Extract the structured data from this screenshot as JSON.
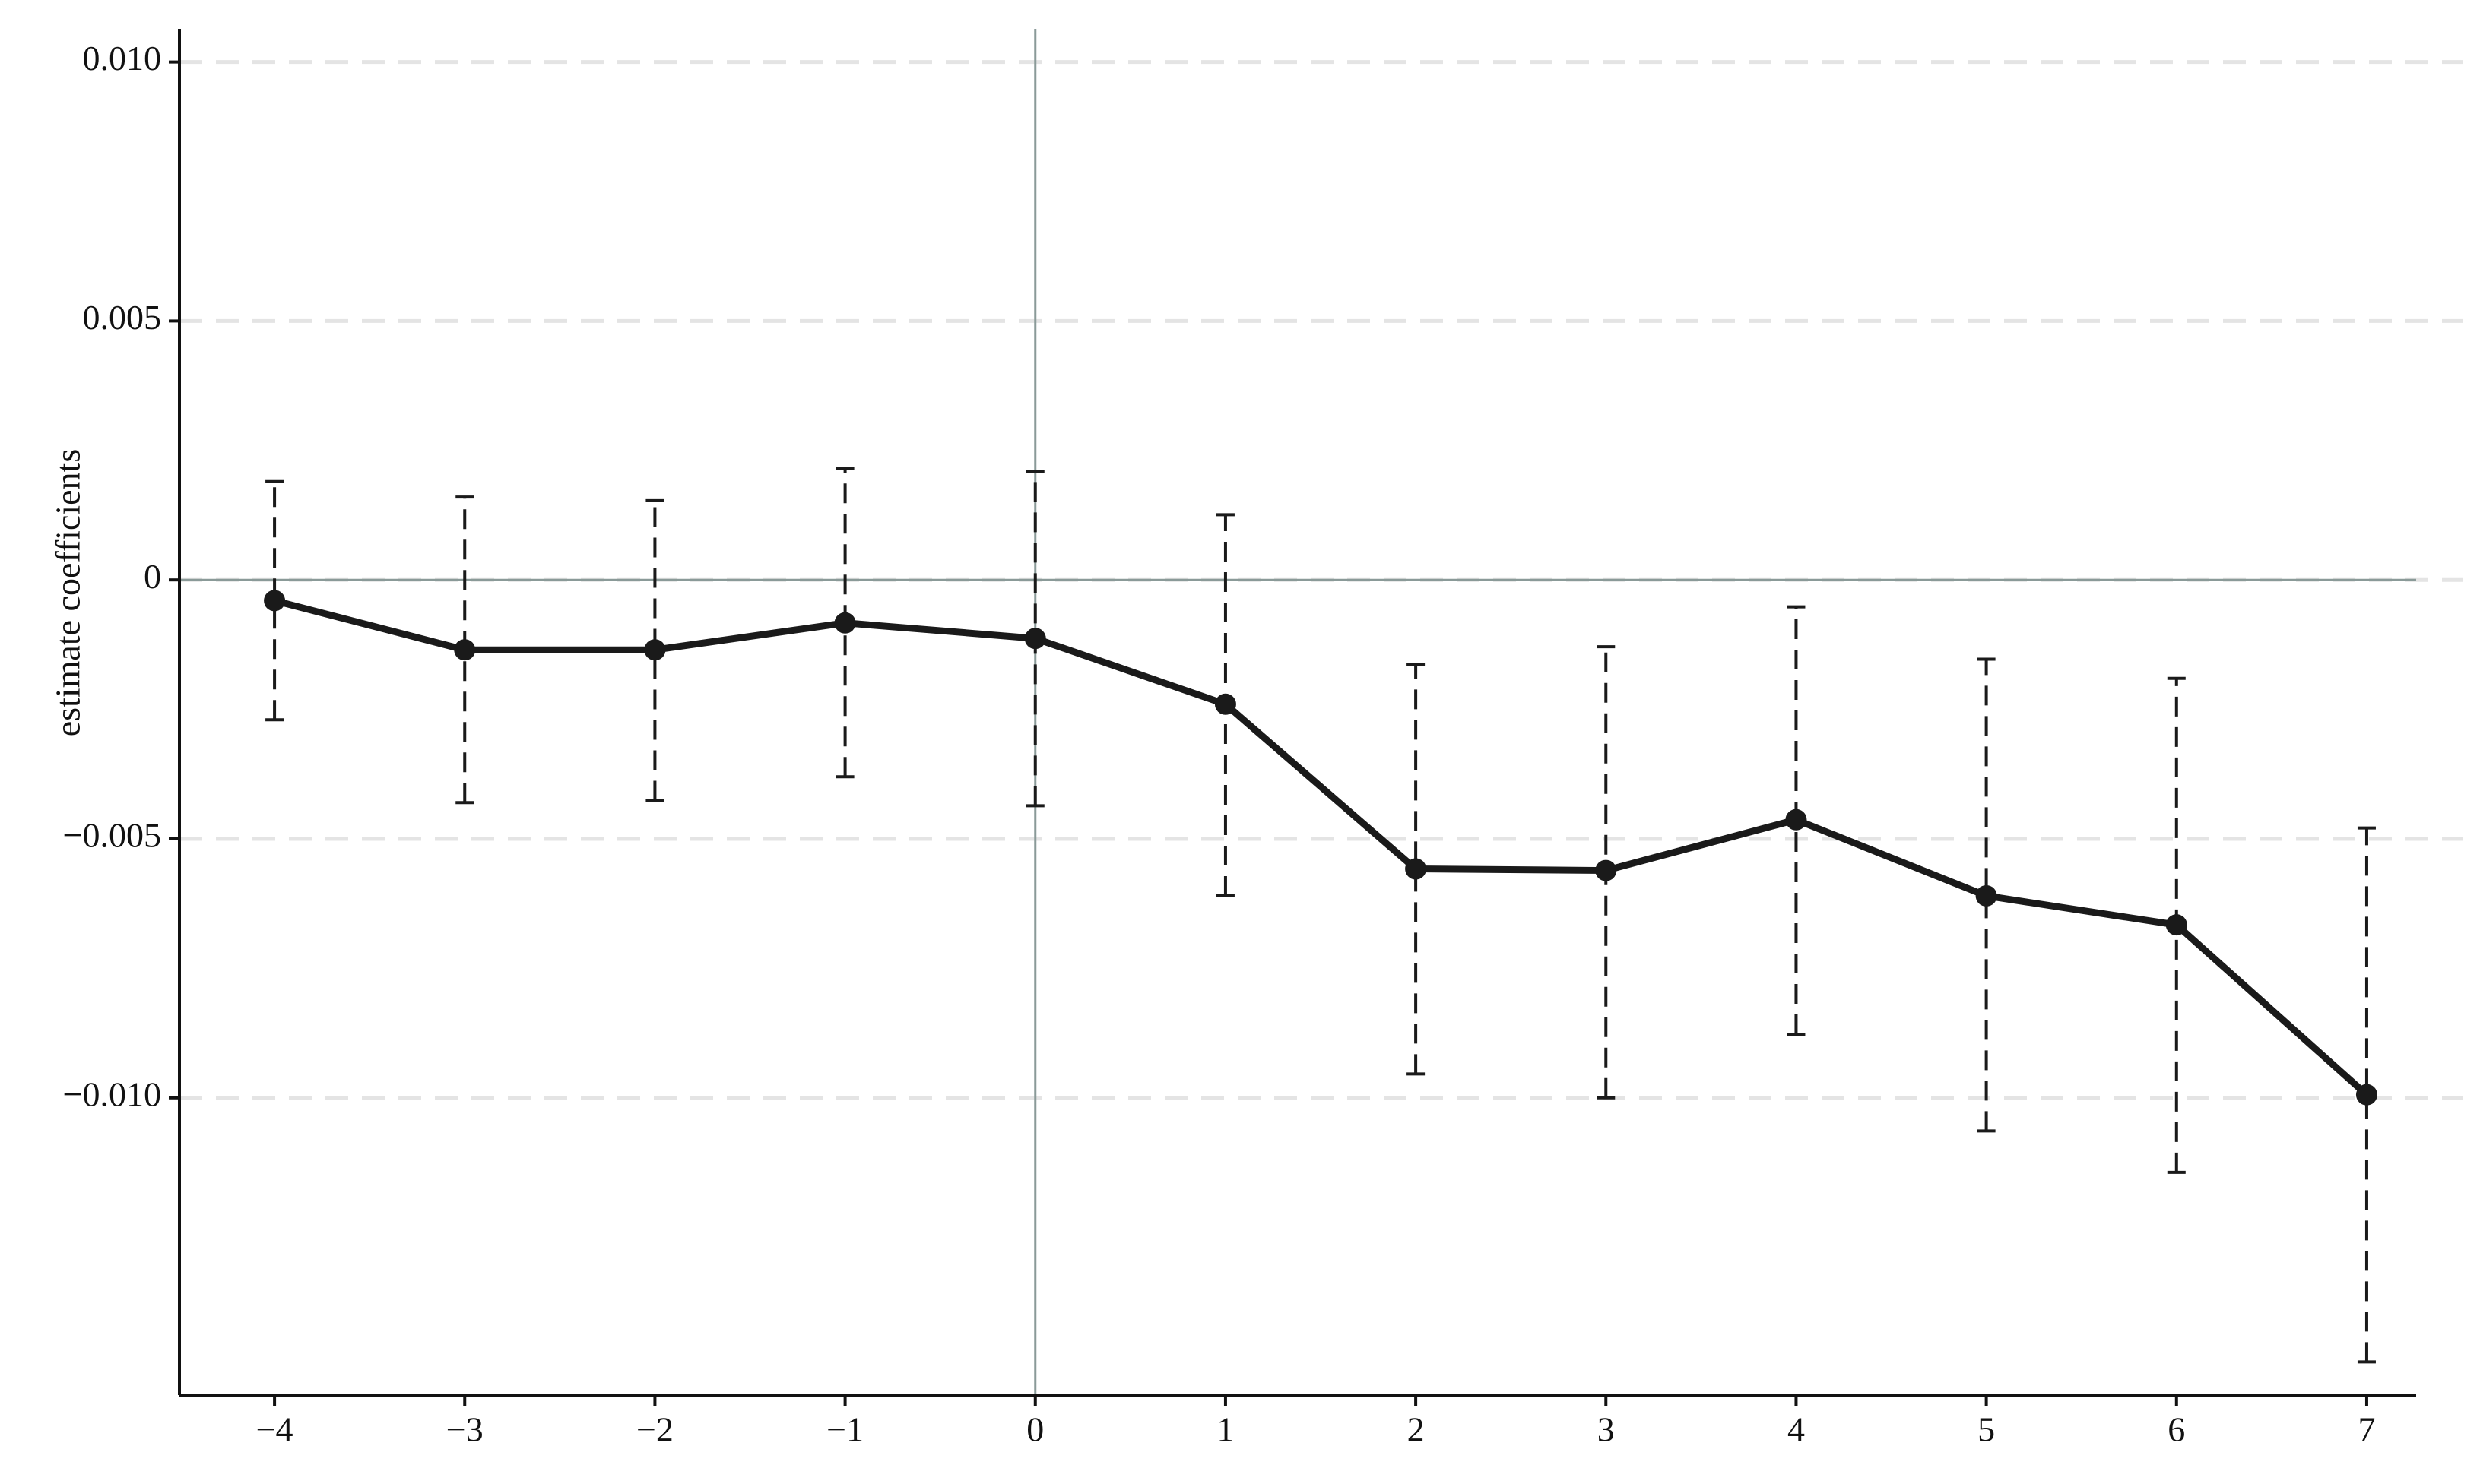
{
  "chart_data": {
    "type": "errorbar-line",
    "ylabel": "estimate coefficients",
    "x": [
      -4,
      -3,
      -2,
      -1,
      0,
      1,
      2,
      3,
      4,
      5,
      6,
      7
    ],
    "values": [
      -0.0004,
      -0.00135,
      -0.00135,
      -0.00083,
      -0.00113,
      -0.0024,
      -0.00558,
      -0.00561,
      -0.00463,
      -0.0061,
      -0.00666,
      -0.00994
    ],
    "lower": [
      -0.0027,
      -0.0043,
      -0.00426,
      -0.0038,
      -0.00436,
      -0.0061,
      -0.00954,
      -0.01,
      -0.00877,
      -0.01064,
      -0.01144,
      -0.0151
    ],
    "upper": [
      0.0019,
      0.0016,
      0.00153,
      0.00215,
      0.0021,
      0.00126,
      -0.00163,
      -0.00129,
      -0.00052,
      -0.00153,
      -0.0019,
      -0.00479
    ],
    "color": "#1a1a1a",
    "reference_color": "#8a9a98",
    "hline": 0,
    "vline": 0,
    "xlim": [
      -4.5,
      7.26
    ],
    "ylim": [
      -0.01574,
      0.01064
    ],
    "xticks": [
      {
        "value": -4,
        "label": "−4"
      },
      {
        "value": -3,
        "label": "−3"
      },
      {
        "value": -2,
        "label": "−2"
      },
      {
        "value": -1,
        "label": "−1"
      },
      0,
      1,
      2,
      3,
      4,
      5,
      6,
      7
    ],
    "yticks": [
      {
        "value": 0.01,
        "label": "0.010"
      },
      0.005,
      0,
      {
        "value": -0.005,
        "label": "−0.005"
      },
      {
        "value": -0.01,
        "label": "−0.010"
      }
    ],
    "grid": true
  }
}
